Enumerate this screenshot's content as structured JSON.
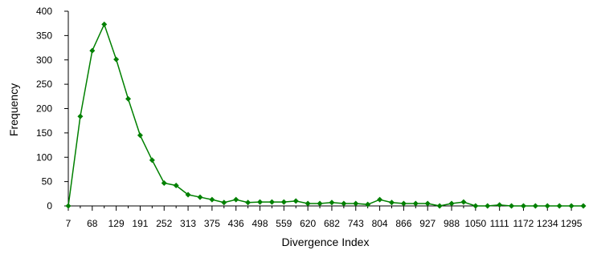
{
  "chart_data": {
    "type": "line",
    "title": "",
    "xlabel": "Divergence Index",
    "ylabel": "Frequency",
    "ylim": [
      0,
      400
    ],
    "y_ticks": [
      0,
      50,
      100,
      150,
      200,
      250,
      300,
      350,
      400
    ],
    "x_tick_labels": [
      "7",
      "68",
      "129",
      "191",
      "252",
      "313",
      "375",
      "436",
      "498",
      "559",
      "620",
      "682",
      "743",
      "804",
      "866",
      "927",
      "988",
      "1050",
      "1111",
      "1172",
      "1234",
      "1295"
    ],
    "grid": false,
    "legend": "none",
    "series": [
      {
        "color": "#008000",
        "values": [
          0,
          184,
          319,
          373,
          301,
          220,
          145,
          94,
          47,
          42,
          23,
          18,
          13,
          7,
          13,
          7,
          8,
          8,
          8,
          10,
          5,
          5,
          7,
          5,
          5,
          3,
          13,
          7,
          5,
          5,
          5,
          0,
          5,
          8,
          0,
          0,
          2,
          0,
          0,
          0,
          0,
          0,
          0,
          0
        ]
      }
    ]
  }
}
